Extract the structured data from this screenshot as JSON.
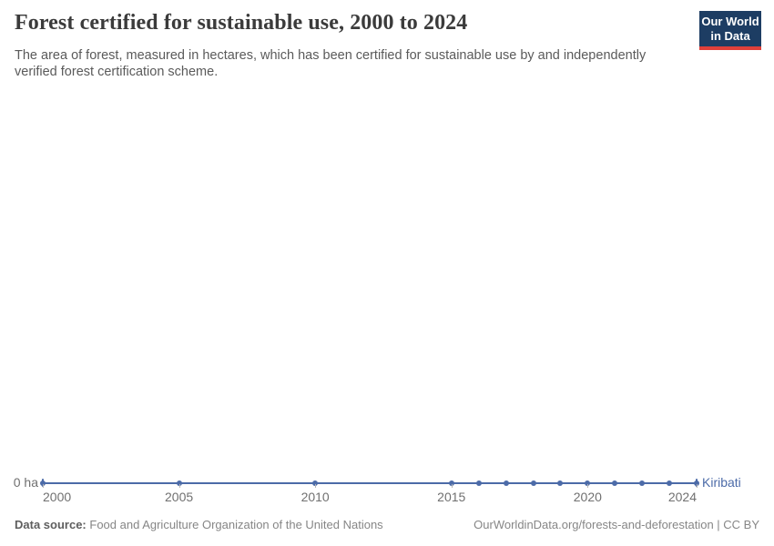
{
  "header": {
    "title": "Forest certified for sustainable use, 2000 to 2024",
    "subtitle": "The area of forest, measured in hectares, which has been certified for sustainable use by and independently verified forest certification scheme.",
    "logo": {
      "line1": "Our World",
      "line2": "in Data"
    }
  },
  "chart_data": {
    "type": "line",
    "title": "Forest certified for sustainable use, 2000 to 2024",
    "xlabel": "",
    "ylabel": "",
    "unit": "ha",
    "xlim": [
      2000,
      2024
    ],
    "ylim": [
      0,
      0
    ],
    "grid": false,
    "legend_position": "end-of-line",
    "x_ticks": [
      2000,
      2005,
      2010,
      2015,
      2020,
      2024
    ],
    "y_axis_label": "0 ha",
    "series": [
      {
        "name": "Kiribati",
        "color": "#4c6ba8",
        "x": [
          2000,
          2005,
          2010,
          2015,
          2016,
          2017,
          2018,
          2019,
          2020,
          2021,
          2022,
          2023,
          2024
        ],
        "values": [
          0,
          0,
          0,
          0,
          0,
          0,
          0,
          0,
          0,
          0,
          0,
          0,
          0
        ]
      }
    ]
  },
  "footer": {
    "data_source_label": "Data source:",
    "data_source": "Food and Agriculture Organization of the United Nations",
    "link": "OurWorldinData.org/forests-and-deforestation | CC BY"
  },
  "colors": {
    "line": "#4c6ba8",
    "logo_bg": "#1d3d63",
    "logo_stripe": "#e0403a",
    "axis_text": "#707070"
  }
}
